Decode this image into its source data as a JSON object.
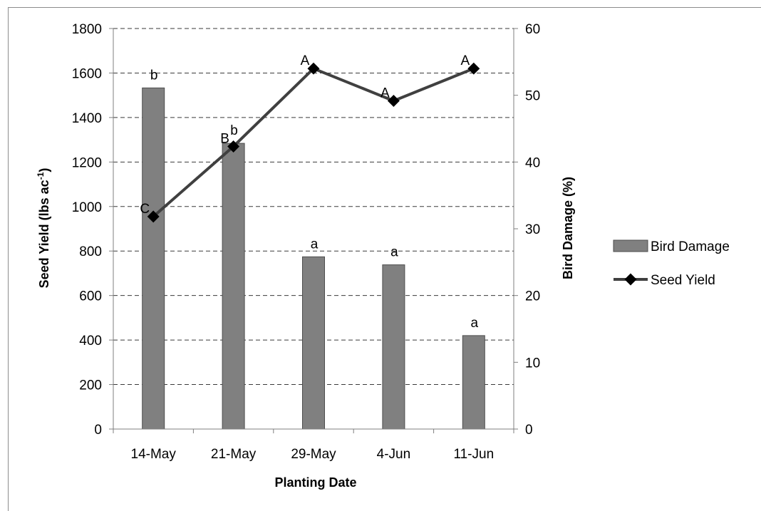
{
  "chart_data": {
    "type": "bar",
    "categories": [
      "14-May",
      "21-May",
      "29-May",
      "4-Jun",
      "11-Jun"
    ],
    "xlabel": "Planting Date",
    "ylabel": "Seed Yield (lbs ac",
    "ylabel_superscript": "-1",
    "ylabel_suffix": ")",
    "y2label": "Bird Damage (%)",
    "ylim": [
      0,
      1800
    ],
    "yticks": [
      0,
      200,
      400,
      600,
      800,
      1000,
      1200,
      1400,
      1600,
      1800
    ],
    "y2lim": [
      0,
      60
    ],
    "y2ticks": [
      0,
      10,
      20,
      30,
      40,
      50,
      60
    ],
    "grid": true,
    "legend_position": "right",
    "series": [
      {
        "name": "Bird Damage",
        "type": "bar",
        "axis": "right",
        "color": "#808080",
        "values": [
          51.1,
          42.8,
          25.8,
          24.6,
          14.0
        ],
        "labels": [
          "b",
          "b",
          "a",
          "a",
          "a"
        ]
      },
      {
        "name": "Seed Yield",
        "type": "line",
        "axis": "left",
        "color": "#404040",
        "marker": "diamond",
        "values": [
          955,
          1270,
          1620,
          1475,
          1620
        ],
        "labels": [
          "C",
          "B",
          "A",
          "A",
          "A"
        ]
      }
    ]
  }
}
